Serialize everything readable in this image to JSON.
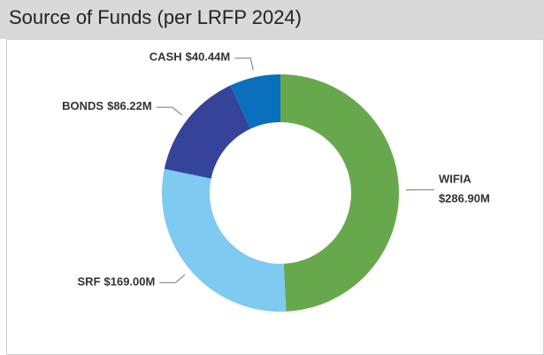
{
  "chart_data": {
    "type": "pie",
    "title": "Source of Funds (per LRFP 2024)",
    "categories": [
      "WIFIA",
      "SRF",
      "BONDS",
      "CASH"
    ],
    "values": [
      286.9,
      169.0,
      86.22,
      40.44
    ],
    "value_labels": [
      "$286.90M",
      "$169.00M",
      "$86.22M",
      "$40.44M"
    ],
    "colors": [
      "#68a84c",
      "#7ecaf0",
      "#35449a",
      "#0a6fbc"
    ]
  }
}
